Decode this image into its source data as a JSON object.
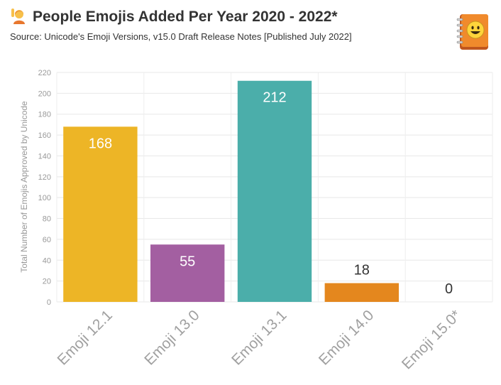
{
  "header": {
    "title": "People Emojis Added Per Year 2020 - 2022*",
    "subtitle": "Source: Unicode's Emoji Versions, v15.0 Draft Release Notes [Published July 2022]",
    "icons": [
      "raising-hand-person-icon",
      "emoji-book-icon"
    ]
  },
  "chart_data": {
    "type": "bar",
    "categories": [
      "Emoji 12.1",
      "Emoji 13.0",
      "Emoji 13.1",
      "Emoji 14.0",
      "Emoji 15.0*"
    ],
    "values": [
      168,
      55,
      212,
      18,
      0
    ],
    "colors": [
      "#EDB526",
      "#A35FA1",
      "#4BAEAA",
      "#E4871E",
      "#9E9E9E"
    ],
    "ylabel": "Total Number of Emojis Approved by Unicode",
    "ylim": [
      0,
      220
    ],
    "yticks": [
      0,
      20,
      40,
      60,
      80,
      100,
      120,
      140,
      160,
      180,
      200,
      220
    ],
    "grid": true,
    "legend": "none"
  }
}
